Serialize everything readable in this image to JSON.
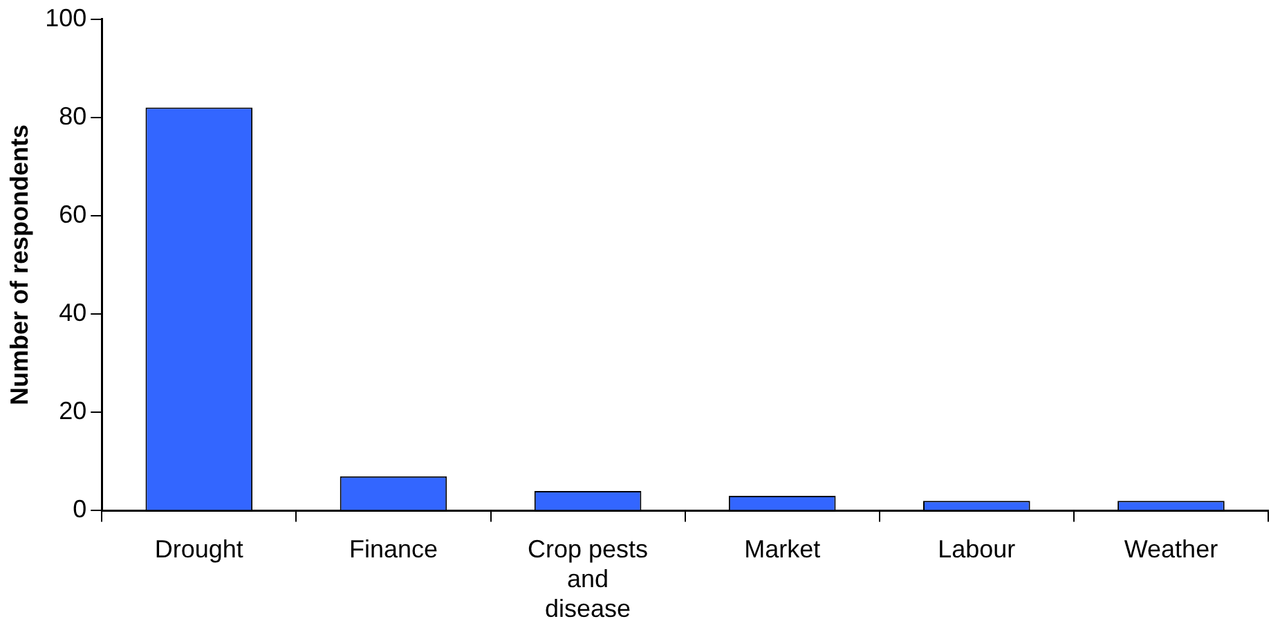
{
  "chart_data": {
    "type": "bar",
    "ylabel": "Number of respondents",
    "categories": [
      "Drought",
      "Finance",
      "Crop pests and disease",
      "Market",
      "Labour",
      "Weather"
    ],
    "values": [
      82,
      7,
      4,
      3,
      2,
      2
    ],
    "color": "#3366ff",
    "ylim": [
      0,
      100
    ],
    "yticks": [
      0,
      20,
      40,
      60,
      80,
      100
    ],
    "grid": false,
    "legend": false
  }
}
